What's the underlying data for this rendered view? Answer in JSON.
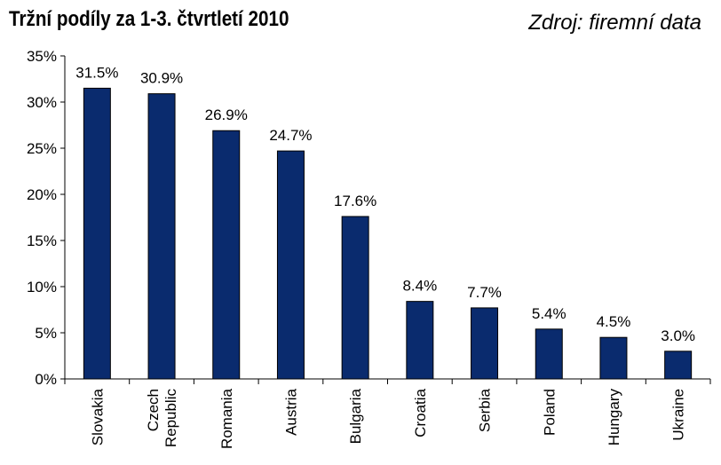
{
  "header": {
    "title": "Tržní podíly za 1-3. čtvrtletí 2010",
    "source": "Zdroj: firemní data"
  },
  "chart_data": {
    "type": "bar",
    "title": "Tržní podíly za 1-3. čtvrtletí 2010",
    "categories": [
      "Slovakia",
      "Czech Republic",
      "Romania",
      "Austria",
      "Bulgaria",
      "Croatia",
      "Serbia",
      "Poland",
      "Hungary",
      "Ukraine"
    ],
    "values": [
      31.5,
      30.9,
      26.9,
      24.7,
      17.6,
      8.4,
      7.7,
      5.4,
      4.5,
      3.0
    ],
    "data_labels": [
      "31.5%",
      "30.9%",
      "26.9%",
      "24.7%",
      "17.6%",
      "8.4%",
      "7.7%",
      "5.4%",
      "4.5%",
      "3.0%"
    ],
    "yticks": [
      "0%",
      "5%",
      "10%",
      "15%",
      "20%",
      "25%",
      "30%",
      "35%"
    ],
    "ylim": [
      0,
      35
    ],
    "xlabel": "",
    "ylabel": "",
    "grid": false,
    "legend": "none",
    "bar_color": "#0a2b6e",
    "bar_edge_color": "#000000"
  }
}
